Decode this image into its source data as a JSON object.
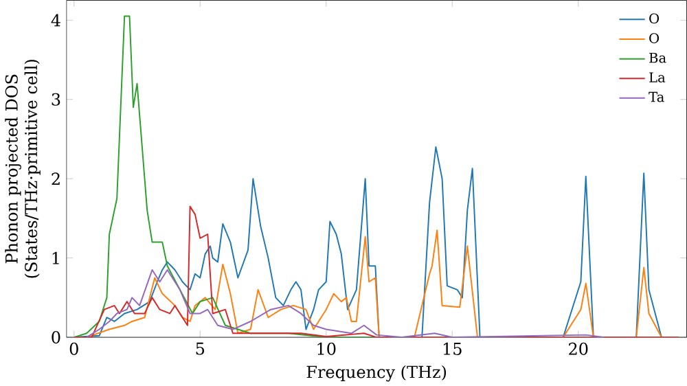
{
  "chart_data": {
    "type": "line",
    "xlabel": "Frequency (THz)",
    "ylabel": "Phonon projected DOS\n(States/THz·primitive cell)",
    "xlim": [
      -0.3,
      24.3
    ],
    "ylim": [
      0,
      4.25
    ],
    "xticks": [
      0,
      5,
      10,
      15,
      20
    ],
    "yticks": [
      0,
      1,
      2,
      3,
      4
    ],
    "legend": "top right",
    "grid": false,
    "series": [
      {
        "name": "O",
        "color": "#1f77b4",
        "x": [
          0,
          1,
          1.3,
          1.6,
          2,
          2.5,
          3,
          3.3,
          3.5,
          3.7,
          4,
          4.3,
          4.6,
          4.8,
          5,
          5.2,
          5.4,
          5.5,
          5.7,
          5.9,
          6.2,
          6.5,
          6.9,
          7.1,
          7.4,
          7.7,
          8,
          8.3,
          8.6,
          8.8,
          9,
          9.2,
          9.5,
          9.7,
          10,
          10.15,
          10.4,
          10.6,
          10.85,
          11.2,
          11.55,
          11.7,
          11.95,
          12.1,
          13.8,
          14.1,
          14.35,
          14.6,
          14.8,
          15.2,
          15.4,
          15.6,
          15.8,
          16.1,
          19.4,
          20.1,
          20.3,
          20.6,
          22.3,
          22.6,
          22.8,
          23.3
        ],
        "values": [
          0,
          0.02,
          0.25,
          0.2,
          0.3,
          0.35,
          0.45,
          0.7,
          0.85,
          0.95,
          0.85,
          0.7,
          0.6,
          0.8,
          0.75,
          1.05,
          1.15,
          1.0,
          0.95,
          1.43,
          1.2,
          0.75,
          1.1,
          2.0,
          1.4,
          1.0,
          0.5,
          0.4,
          0.6,
          0.7,
          0.6,
          0.1,
          0.35,
          0.6,
          0.7,
          1.46,
          1.3,
          1.05,
          0.35,
          0.6,
          2.0,
          0.9,
          0.9,
          0,
          0,
          1.7,
          2.4,
          2.0,
          0.65,
          0.6,
          0.5,
          1.6,
          2.13,
          0,
          0,
          0.7,
          2.03,
          0,
          0,
          2.07,
          0.6,
          0
        ]
      },
      {
        "name": "O",
        "color": "#ff7f0e",
        "x": [
          0,
          0.5,
          1.4,
          2,
          2.3,
          2.8,
          3.2,
          3.5,
          4,
          4.3,
          4.6,
          4.8,
          5.2,
          5.6,
          5.9,
          6.2,
          6.5,
          7,
          7.3,
          7.7,
          8.2,
          8.7,
          9.2,
          9.5,
          10,
          10.3,
          10.6,
          10.8,
          11,
          11.2,
          11.55,
          11.7,
          11.95,
          12.1,
          13.5,
          14.1,
          14.2,
          14.4,
          14.6,
          15.3,
          15.6,
          16,
          19.4,
          20.1,
          20.3,
          20.6,
          22.3,
          22.6,
          22.8,
          23.3
        ],
        "values": [
          0,
          0,
          0.1,
          0.15,
          0.2,
          0.25,
          0.75,
          0.55,
          0.4,
          0.25,
          0.2,
          0.4,
          0.5,
          0.35,
          0.92,
          0.55,
          0.05,
          0.1,
          0.6,
          0.25,
          0.35,
          0.4,
          0.35,
          0.1,
          0.35,
          0.55,
          0.45,
          0.5,
          0.2,
          0.2,
          1.27,
          0.7,
          0.75,
          0,
          0,
          0.8,
          0.9,
          1.35,
          0.4,
          0.38,
          1.15,
          0,
          0,
          0.35,
          0.68,
          0,
          0,
          0.88,
          0.3,
          0
        ]
      },
      {
        "name": "Ba",
        "color": "#2ca02c",
        "x": [
          0,
          0.5,
          1,
          1.3,
          1.4,
          1.7,
          2.0,
          2.2,
          2.35,
          2.5,
          2.6,
          2.9,
          3.1,
          3.5,
          3.7,
          4.2,
          4.7,
          5.0,
          5.5,
          6,
          7,
          8.5,
          10,
          24
        ],
        "values": [
          0,
          0.05,
          0.2,
          0.5,
          1.3,
          1.75,
          4.05,
          4.05,
          2.9,
          3.2,
          2.8,
          1.6,
          1.2,
          1.2,
          0.9,
          0.6,
          0.3,
          0.45,
          0.5,
          0.15,
          0.05,
          0.05,
          0,
          0
        ]
      },
      {
        "name": "La",
        "color": "#d62728",
        "x": [
          0,
          0.7,
          1.2,
          1.6,
          1.8,
          2.1,
          2.4,
          2.8,
          3.1,
          3.4,
          3.8,
          4.0,
          4.3,
          4.5,
          4.6,
          4.8,
          5.0,
          5.3,
          5.5,
          6.0,
          6.3,
          8,
          9,
          10,
          11.5,
          12,
          24
        ],
        "values": [
          0,
          0,
          0.35,
          0.4,
          0.3,
          0.45,
          0.3,
          0.3,
          0.5,
          0.35,
          0.3,
          0.4,
          0.25,
          0.15,
          1.65,
          1.55,
          1.25,
          1.3,
          0.3,
          0.35,
          0.05,
          0.05,
          0.05,
          0.01,
          0.05,
          0,
          0
        ]
      },
      {
        "name": "Ta",
        "color": "#9467bd",
        "x": [
          0.5,
          1,
          1.4,
          1.7,
          2.1,
          2.3,
          2.6,
          3.1,
          3.4,
          3.7,
          4.2,
          4.6,
          5.0,
          5.3,
          5.7,
          6.3,
          7,
          7.8,
          8.5,
          9,
          9.5,
          10,
          11,
          11.5,
          12,
          13,
          14.3,
          15,
          20.3,
          21
        ],
        "values": [
          0,
          0.1,
          0.2,
          0.3,
          0.35,
          0.5,
          0.4,
          0.85,
          0.7,
          0.85,
          0.6,
          0.3,
          0.3,
          0.35,
          0.15,
          0.1,
          0.2,
          0.35,
          0.4,
          0.3,
          0.15,
          0.1,
          0.05,
          0.15,
          0.03,
          0,
          0.05,
          0,
          0.03,
          0
        ]
      }
    ]
  }
}
